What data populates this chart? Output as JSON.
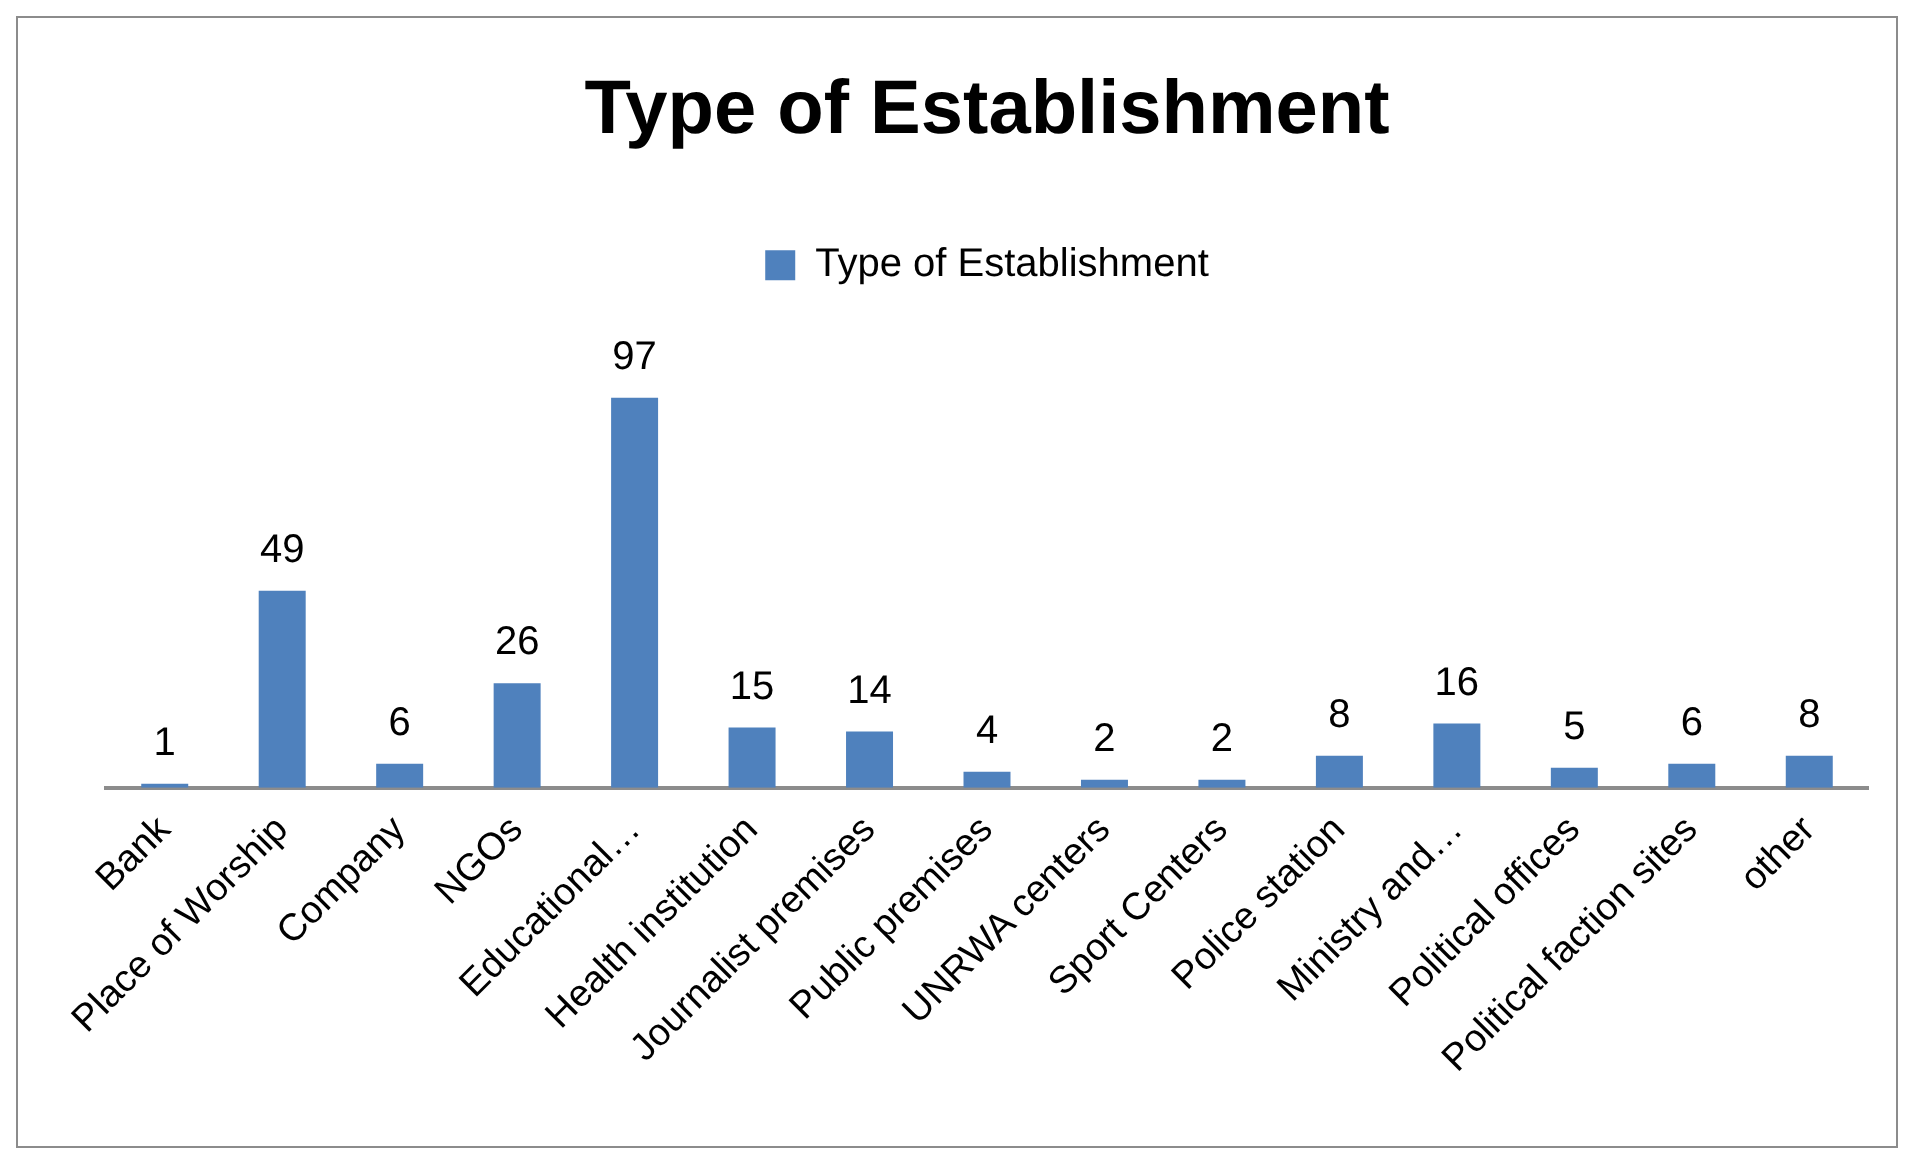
{
  "chart_data": {
    "type": "bar",
    "title": "Type of Establishment",
    "categories": [
      "Bank",
      "Place of Worship",
      "Company",
      "NGOs",
      "Educational…",
      "Health institution",
      "Journalist premises",
      "Public premises",
      "UNRWA centers",
      "Sport Centers",
      "Police station",
      "Ministry and…",
      "Political offices",
      "Political faction sites",
      "other"
    ],
    "series": [
      {
        "name": "Type of Establishment",
        "color": "#4f81bd",
        "values": [
          1,
          49,
          6,
          26,
          97,
          15,
          14,
          4,
          2,
          2,
          8,
          16,
          5,
          6,
          8
        ]
      }
    ],
    "data_labels": true,
    "legend": "top",
    "grid": false
  }
}
